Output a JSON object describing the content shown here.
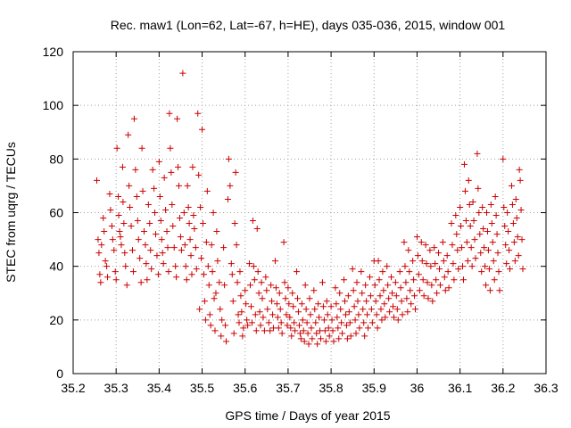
{
  "chart_data": {
    "type": "scatter",
    "title": "Rec. maw1 (Lon=62, Lat=-67, h=HE), days 035-036, 2015, window 001",
    "xlabel": "GPS time / Days of year 2015",
    "ylabel": "STEC from uqrg / TECUs",
    "xlim": [
      35.2,
      36.3
    ],
    "ylim": [
      0,
      120
    ],
    "xticks": [
      "35.2",
      "35.3",
      "35.4",
      "35.5",
      "35.6",
      "35.7",
      "35.8",
      "35.9",
      "36",
      "36.1",
      "36.2",
      "36.3"
    ],
    "yticks": [
      "0",
      "20",
      "40",
      "60",
      "80",
      "100",
      "120"
    ],
    "grid": true,
    "marker": "+",
    "color": "#cc0000",
    "points": [
      [
        35.255,
        72
      ],
      [
        35.258,
        50
      ],
      [
        35.26,
        45
      ],
      [
        35.262,
        37
      ],
      [
        35.264,
        34
      ],
      [
        35.266,
        48
      ],
      [
        35.27,
        58
      ],
      [
        35.272,
        53
      ],
      [
        35.275,
        42
      ],
      [
        35.278,
        40
      ],
      [
        35.28,
        36
      ],
      [
        35.285,
        67
      ],
      [
        35.287,
        61
      ],
      [
        35.29,
        55
      ],
      [
        35.292,
        50
      ],
      [
        35.295,
        46
      ],
      [
        35.298,
        38
      ],
      [
        35.3,
        35
      ],
      [
        35.302,
        84
      ],
      [
        35.305,
        66
      ],
      [
        35.306,
        59
      ],
      [
        35.308,
        53
      ],
      [
        35.31,
        51
      ],
      [
        35.312,
        48
      ],
      [
        35.315,
        77
      ],
      [
        35.316,
        64
      ],
      [
        35.318,
        56
      ],
      [
        35.32,
        45
      ],
      [
        35.322,
        40
      ],
      [
        35.325,
        33
      ],
      [
        35.328,
        89
      ],
      [
        35.33,
        70
      ],
      [
        35.332,
        62
      ],
      [
        35.335,
        55
      ],
      [
        35.338,
        46
      ],
      [
        35.34,
        38
      ],
      [
        35.342,
        95
      ],
      [
        35.345,
        76
      ],
      [
        35.348,
        66
      ],
      [
        35.35,
        57
      ],
      [
        35.352,
        50
      ],
      [
        35.355,
        43
      ],
      [
        35.358,
        34
      ],
      [
        35.36,
        84
      ],
      [
        35.362,
        68
      ],
      [
        35.365,
        53
      ],
      [
        35.368,
        48
      ],
      [
        35.37,
        41
      ],
      [
        35.372,
        35
      ],
      [
        35.375,
        63
      ],
      [
        35.378,
        56
      ],
      [
        35.38,
        46
      ],
      [
        35.382,
        39
      ],
      [
        35.385,
        76
      ],
      [
        35.388,
        69
      ],
      [
        35.39,
        60
      ],
      [
        35.392,
        52
      ],
      [
        35.395,
        44
      ],
      [
        35.398,
        37
      ],
      [
        35.4,
        79
      ],
      [
        35.402,
        66
      ],
      [
        35.404,
        57
      ],
      [
        35.406,
        50
      ],
      [
        35.408,
        45
      ],
      [
        35.41,
        41
      ],
      [
        35.412,
        73
      ],
      [
        35.415,
        61
      ],
      [
        35.418,
        53
      ],
      [
        35.42,
        47
      ],
      [
        35.422,
        38
      ],
      [
        35.424,
        97
      ],
      [
        35.426,
        84
      ],
      [
        35.428,
        75
      ],
      [
        35.43,
        63
      ],
      [
        35.432,
        55
      ],
      [
        35.435,
        47
      ],
      [
        35.438,
        40
      ],
      [
        35.44,
        36
      ],
      [
        35.442,
        95
      ],
      [
        35.444,
        77
      ],
      [
        35.446,
        70
      ],
      [
        35.448,
        58
      ],
      [
        35.45,
        51
      ],
      [
        35.452,
        46
      ],
      [
        35.455,
        112
      ],
      [
        35.458,
        60
      ],
      [
        35.46,
        48
      ],
      [
        35.462,
        40
      ],
      [
        35.464,
        35
      ],
      [
        35.466,
        70
      ],
      [
        35.468,
        62
      ],
      [
        35.47,
        56
      ],
      [
        35.472,
        50
      ],
      [
        35.474,
        44
      ],
      [
        35.476,
        37
      ],
      [
        35.478,
        77
      ],
      [
        35.48,
        59
      ],
      [
        35.482,
        54
      ],
      [
        35.485,
        47
      ],
      [
        35.487,
        39
      ],
      [
        35.49,
        97
      ],
      [
        35.492,
        74
      ],
      [
        35.494,
        24
      ],
      [
        35.496,
        62
      ],
      [
        35.498,
        43
      ],
      [
        35.5,
        91
      ],
      [
        35.502,
        56
      ],
      [
        35.504,
        37
      ],
      [
        35.506,
        27
      ],
      [
        35.508,
        20
      ],
      [
        35.51,
        49
      ],
      [
        35.512,
        68
      ],
      [
        35.514,
        40
      ],
      [
        35.516,
        33
      ],
      [
        35.518,
        22
      ],
      [
        35.52,
        18
      ],
      [
        35.522,
        48
      ],
      [
        35.524,
        38
      ],
      [
        35.526,
        60
      ],
      [
        35.528,
        28
      ],
      [
        35.53,
        16
      ],
      [
        35.532,
        30
      ],
      [
        35.534,
        53
      ],
      [
        35.536,
        42
      ],
      [
        35.54,
        34
      ],
      [
        35.542,
        24
      ],
      [
        35.544,
        14
      ],
      [
        35.546,
        20
      ],
      [
        35.55,
        47
      ],
      [
        35.552,
        33
      ],
      [
        35.554,
        18
      ],
      [
        35.556,
        12
      ],
      [
        35.56,
        65
      ],
      [
        35.562,
        80
      ],
      [
        35.565,
        70
      ],
      [
        35.568,
        41
      ],
      [
        35.57,
        37
      ],
      [
        35.572,
        27
      ],
      [
        35.574,
        15
      ],
      [
        35.576,
        56
      ],
      [
        35.578,
        75
      ],
      [
        35.58,
        48
      ],
      [
        35.582,
        34
      ],
      [
        35.584,
        22
      ],
      [
        35.586,
        19
      ],
      [
        35.588,
        38
      ],
      [
        35.59,
        29
      ],
      [
        35.592,
        23
      ],
      [
        35.594,
        14
      ],
      [
        35.596,
        17
      ],
      [
        35.6,
        31
      ],
      [
        35.602,
        26
      ],
      [
        35.604,
        20
      ],
      [
        35.606,
        18
      ],
      [
        35.61,
        41
      ],
      [
        35.612,
        33
      ],
      [
        35.614,
        25
      ],
      [
        35.616,
        19
      ],
      [
        35.618,
        57
      ],
      [
        35.62,
        40
      ],
      [
        35.622,
        35
      ],
      [
        35.624,
        22
      ],
      [
        35.626,
        16
      ],
      [
        35.628,
        54
      ],
      [
        35.63,
        38
      ],
      [
        35.632,
        30
      ],
      [
        35.634,
        23
      ],
      [
        35.636,
        18
      ],
      [
        35.638,
        34
      ],
      [
        35.64,
        28
      ],
      [
        35.642,
        21
      ],
      [
        35.645,
        16
      ],
      [
        35.648,
        36
      ],
      [
        35.65,
        31
      ],
      [
        35.652,
        24
      ],
      [
        35.655,
        19
      ],
      [
        35.658,
        16
      ],
      [
        35.66,
        33
      ],
      [
        35.662,
        27
      ],
      [
        35.664,
        22
      ],
      [
        35.666,
        17
      ],
      [
        35.67,
        42
      ],
      [
        35.672,
        32
      ],
      [
        35.674,
        26
      ],
      [
        35.676,
        21
      ],
      [
        35.678,
        17
      ],
      [
        35.68,
        30
      ],
      [
        35.682,
        24
      ],
      [
        35.684,
        19
      ],
      [
        35.686,
        15
      ],
      [
        35.69,
        49
      ],
      [
        35.692,
        34
      ],
      [
        35.694,
        28
      ],
      [
        35.696,
        22
      ],
      [
        35.698,
        18
      ],
      [
        35.7,
        32
      ],
      [
        35.702,
        26
      ],
      [
        35.704,
        21
      ],
      [
        35.706,
        17
      ],
      [
        35.708,
        14
      ],
      [
        35.71,
        30
      ],
      [
        35.712,
        25
      ],
      [
        35.714,
        19
      ],
      [
        35.716,
        16
      ],
      [
        35.72,
        38
      ],
      [
        35.722,
        28
      ],
      [
        35.724,
        23
      ],
      [
        35.726,
        18
      ],
      [
        35.728,
        15
      ],
      [
        35.73,
        13
      ],
      [
        35.732,
        26
      ],
      [
        35.734,
        20
      ],
      [
        35.736,
        16
      ],
      [
        35.738,
        12
      ],
      [
        35.74,
        33
      ],
      [
        35.742,
        24
      ],
      [
        35.744,
        19
      ],
      [
        35.746,
        15
      ],
      [
        35.748,
        11
      ],
      [
        35.75,
        28
      ],
      [
        35.752,
        22
      ],
      [
        35.754,
        17
      ],
      [
        35.756,
        13
      ],
      [
        35.76,
        31
      ],
      [
        35.762,
        24
      ],
      [
        35.764,
        19
      ],
      [
        35.766,
        15
      ],
      [
        35.768,
        11
      ],
      [
        35.77,
        26
      ],
      [
        35.772,
        21
      ],
      [
        35.774,
        16
      ],
      [
        35.776,
        13
      ],
      [
        35.78,
        34
      ],
      [
        35.782,
        25
      ],
      [
        35.784,
        20
      ],
      [
        35.786,
        16
      ],
      [
        35.788,
        12
      ],
      [
        35.79,
        27
      ],
      [
        35.792,
        22
      ],
      [
        35.794,
        17
      ],
      [
        35.796,
        14
      ],
      [
        35.8,
        25
      ],
      [
        35.802,
        20
      ],
      [
        35.804,
        16
      ],
      [
        35.806,
        12
      ],
      [
        35.81,
        32
      ],
      [
        35.812,
        26
      ],
      [
        35.814,
        21
      ],
      [
        35.816,
        17
      ],
      [
        35.818,
        13
      ],
      [
        35.82,
        30
      ],
      [
        35.822,
        24
      ],
      [
        35.824,
        19
      ],
      [
        35.826,
        15
      ],
      [
        35.83,
        35
      ],
      [
        35.832,
        27
      ],
      [
        35.834,
        22
      ],
      [
        35.836,
        18
      ],
      [
        35.838,
        13
      ],
      [
        35.84,
        29
      ],
      [
        35.842,
        23
      ],
      [
        35.844,
        19
      ],
      [
        35.846,
        14
      ],
      [
        35.85,
        39
      ],
      [
        35.852,
        31
      ],
      [
        35.854,
        25
      ],
      [
        35.856,
        20
      ],
      [
        35.858,
        15
      ],
      [
        35.86,
        34
      ],
      [
        35.862,
        27
      ],
      [
        35.864,
        22
      ],
      [
        35.866,
        17
      ],
      [
        35.87,
        38
      ],
      [
        35.872,
        30
      ],
      [
        35.874,
        24
      ],
      [
        35.876,
        19
      ],
      [
        35.878,
        14
      ],
      [
        35.88,
        33
      ],
      [
        35.882,
        27
      ],
      [
        35.884,
        22
      ],
      [
        35.886,
        17
      ],
      [
        35.89,
        36
      ],
      [
        35.892,
        29
      ],
      [
        35.894,
        24
      ],
      [
        35.896,
        19
      ],
      [
        35.9,
        42
      ],
      [
        35.902,
        33
      ],
      [
        35.904,
        27
      ],
      [
        35.906,
        22
      ],
      [
        35.908,
        17
      ],
      [
        35.91,
        42
      ],
      [
        35.912,
        35
      ],
      [
        35.914,
        29
      ],
      [
        35.916,
        24
      ],
      [
        35.918,
        20
      ],
      [
        35.92,
        38
      ],
      [
        35.922,
        31
      ],
      [
        35.924,
        26
      ],
      [
        35.926,
        21
      ],
      [
        35.93,
        40
      ],
      [
        35.932,
        33
      ],
      [
        35.934,
        28
      ],
      [
        35.936,
        23
      ],
      [
        35.94,
        36
      ],
      [
        35.942,
        30
      ],
      [
        35.944,
        25
      ],
      [
        35.946,
        21
      ],
      [
        35.95,
        34
      ],
      [
        35.952,
        29
      ],
      [
        35.954,
        24
      ],
      [
        35.956,
        20
      ],
      [
        35.96,
        38
      ],
      [
        35.962,
        32
      ],
      [
        35.964,
        27
      ],
      [
        35.966,
        22
      ],
      [
        35.97,
        49
      ],
      [
        35.972,
        40
      ],
      [
        35.974,
        34
      ],
      [
        35.976,
        28
      ],
      [
        35.978,
        23
      ],
      [
        35.98,
        46
      ],
      [
        35.982,
        38
      ],
      [
        35.984,
        31
      ],
      [
        35.986,
        26
      ],
      [
        35.99,
        42
      ],
      [
        35.992,
        35
      ],
      [
        35.994,
        29
      ],
      [
        35.996,
        24
      ],
      [
        36.0,
        51
      ],
      [
        36.002,
        44
      ],
      [
        36.004,
        37
      ],
      [
        36.006,
        31
      ],
      [
        36.01,
        49
      ],
      [
        36.012,
        42
      ],
      [
        36.014,
        35
      ],
      [
        36.016,
        29
      ],
      [
        36.02,
        48
      ],
      [
        36.022,
        41
      ],
      [
        36.024,
        34
      ],
      [
        36.026,
        28
      ],
      [
        36.03,
        46
      ],
      [
        36.032,
        40
      ],
      [
        36.034,
        33
      ],
      [
        36.036,
        27
      ],
      [
        36.04,
        47
      ],
      [
        36.042,
        41
      ],
      [
        36.044,
        35
      ],
      [
        36.046,
        30
      ],
      [
        36.05,
        45
      ],
      [
        36.052,
        39
      ],
      [
        36.054,
        33
      ],
      [
        36.06,
        49
      ],
      [
        36.062,
        42
      ],
      [
        36.064,
        36
      ],
      [
        36.066,
        31
      ],
      [
        36.07,
        44
      ],
      [
        36.072,
        38
      ],
      [
        36.074,
        32
      ],
      [
        36.08,
        56
      ],
      [
        36.082,
        48
      ],
      [
        36.084,
        41
      ],
      [
        36.086,
        35
      ],
      [
        36.09,
        59
      ],
      [
        36.092,
        52
      ],
      [
        36.094,
        46
      ],
      [
        36.096,
        39
      ],
      [
        36.1,
        62
      ],
      [
        36.102,
        55
      ],
      [
        36.104,
        47
      ],
      [
        36.106,
        40
      ],
      [
        36.108,
        35
      ],
      [
        36.11,
        78
      ],
      [
        36.112,
        68
      ],
      [
        36.114,
        57
      ],
      [
        36.116,
        49
      ],
      [
        36.118,
        42
      ],
      [
        36.12,
        72
      ],
      [
        36.122,
        63
      ],
      [
        36.124,
        55
      ],
      [
        36.126,
        47
      ],
      [
        36.128,
        40
      ],
      [
        36.13,
        64
      ],
      [
        36.132,
        57
      ],
      [
        36.134,
        50
      ],
      [
        36.136,
        43
      ],
      [
        36.14,
        82
      ],
      [
        36.142,
        69
      ],
      [
        36.144,
        60
      ],
      [
        36.146,
        52
      ],
      [
        36.148,
        45
      ],
      [
        36.15,
        38
      ],
      [
        36.152,
        62
      ],
      [
        36.154,
        54
      ],
      [
        36.156,
        47
      ],
      [
        36.158,
        40
      ],
      [
        36.16,
        33
      ],
      [
        36.162,
        60
      ],
      [
        36.164,
        53
      ],
      [
        36.166,
        46
      ],
      [
        36.168,
        39
      ],
      [
        36.17,
        31
      ],
      [
        36.172,
        63
      ],
      [
        36.174,
        56
      ],
      [
        36.176,
        49
      ],
      [
        36.178,
        42
      ],
      [
        36.18,
        35
      ],
      [
        36.182,
        66
      ],
      [
        36.184,
        59
      ],
      [
        36.186,
        52
      ],
      [
        36.188,
        45
      ],
      [
        36.19,
        38
      ],
      [
        36.192,
        31
      ],
      [
        36.2,
        80
      ],
      [
        36.202,
        62
      ],
      [
        36.204,
        55
      ],
      [
        36.206,
        48
      ],
      [
        36.208,
        41
      ],
      [
        36.21,
        60
      ],
      [
        36.212,
        53
      ],
      [
        36.214,
        46
      ],
      [
        36.216,
        39
      ],
      [
        36.22,
        70
      ],
      [
        36.222,
        63
      ],
      [
        36.224,
        56
      ],
      [
        36.226,
        49
      ],
      [
        36.228,
        42
      ],
      [
        36.23,
        65
      ],
      [
        36.232,
        58
      ],
      [
        36.234,
        51
      ],
      [
        36.236,
        44
      ],
      [
        36.238,
        76
      ],
      [
        36.24,
        72
      ],
      [
        36.242,
        61
      ],
      [
        36.244,
        50
      ],
      [
        36.246,
        39
      ]
    ]
  }
}
